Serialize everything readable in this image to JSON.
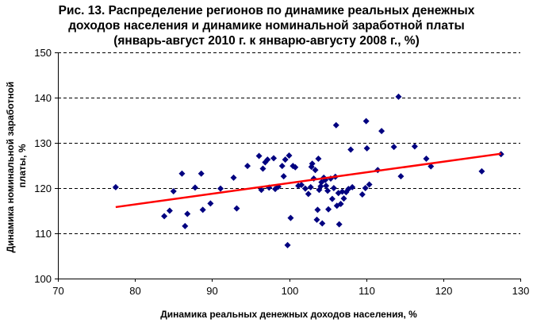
{
  "chart_data": {
    "type": "scatter",
    "title_lines": [
      "Рис. 13. Распределение регионов по динамике реальных денежных",
      "доходов населения и динамике номинальной заработной платы",
      "(январь-август 2010 г. к январю-августу 2008 г., %)"
    ],
    "xlabel": "Динамика реальных денежных доходов населения, %",
    "ylabel_lines": [
      "Динамика номинальной заработной",
      "платы, %"
    ],
    "xlim": [
      70,
      130
    ],
    "ylim": [
      100,
      150
    ],
    "xticks": [
      70,
      80,
      90,
      100,
      110,
      120,
      130
    ],
    "yticks": [
      100,
      110,
      120,
      130,
      140,
      150
    ],
    "grid": "horizontal dashed",
    "marker_color": "#000080",
    "trend_color": "#ff0000",
    "trendline": {
      "x": [
        77.5,
        127.5
      ],
      "y": [
        115.8,
        127.6
      ]
    },
    "points": [
      [
        77.5,
        120.2
      ],
      [
        83.8,
        113.8
      ],
      [
        84.5,
        115.0
      ],
      [
        85.0,
        119.3
      ],
      [
        86.1,
        123.2
      ],
      [
        86.5,
        111.6
      ],
      [
        86.8,
        114.3
      ],
      [
        87.8,
        120.1
      ],
      [
        88.6,
        123.2
      ],
      [
        88.8,
        115.2
      ],
      [
        89.8,
        116.6
      ],
      [
        91.1,
        119.9
      ],
      [
        92.8,
        122.3
      ],
      [
        93.2,
        115.5
      ],
      [
        94.6,
        124.9
      ],
      [
        96.1,
        127.1
      ],
      [
        96.4,
        119.6
      ],
      [
        96.6,
        124.3
      ],
      [
        96.9,
        125.7
      ],
      [
        97.2,
        126.3
      ],
      [
        97.4,
        120.1
      ],
      [
        98.0,
        126.6
      ],
      [
        98.2,
        119.8
      ],
      [
        98.6,
        120.3
      ],
      [
        99.1,
        124.9
      ],
      [
        99.3,
        122.6
      ],
      [
        99.5,
        126.3
      ],
      [
        99.8,
        107.4
      ],
      [
        100.0,
        127.2
      ],
      [
        100.2,
        113.4
      ],
      [
        100.5,
        124.9
      ],
      [
        100.8,
        124.6
      ],
      [
        101.2,
        120.5
      ],
      [
        101.6,
        120.7
      ],
      [
        102.1,
        119.9
      ],
      [
        102.5,
        118.7
      ],
      [
        102.8,
        120.2
      ],
      [
        102.9,
        124.7
      ],
      [
        103.0,
        125.4
      ],
      [
        103.2,
        122.1
      ],
      [
        103.4,
        124.0
      ],
      [
        103.6,
        113.0
      ],
      [
        103.7,
        115.2
      ],
      [
        103.8,
        126.5
      ],
      [
        103.9,
        119.6
      ],
      [
        104.1,
        120.4
      ],
      [
        104.2,
        121.3
      ],
      [
        104.3,
        112.2
      ],
      [
        104.5,
        122.3
      ],
      [
        104.7,
        121.8
      ],
      [
        104.8,
        120.5
      ],
      [
        105.0,
        119.4
      ],
      [
        105.1,
        115.3
      ],
      [
        105.4,
        122.1
      ],
      [
        105.6,
        117.6
      ],
      [
        105.8,
        120.0
      ],
      [
        106.0,
        122.5
      ],
      [
        106.1,
        133.9
      ],
      [
        106.2,
        116.1
      ],
      [
        106.4,
        118.9
      ],
      [
        106.5,
        112.0
      ],
      [
        106.7,
        116.5
      ],
      [
        106.9,
        119.2
      ],
      [
        107.1,
        117.7
      ],
      [
        107.4,
        119.1
      ],
      [
        107.7,
        119.8
      ],
      [
        108.0,
        128.5
      ],
      [
        108.2,
        120.2
      ],
      [
        109.5,
        118.6
      ],
      [
        109.9,
        120.0
      ],
      [
        110.0,
        134.8
      ],
      [
        110.1,
        128.8
      ],
      [
        110.4,
        120.8
      ],
      [
        111.5,
        124.0
      ],
      [
        112.0,
        132.6
      ],
      [
        113.6,
        129.1
      ],
      [
        114.2,
        140.2
      ],
      [
        114.5,
        122.6
      ],
      [
        116.3,
        129.2
      ],
      [
        117.8,
        126.5
      ],
      [
        118.4,
        124.8
      ],
      [
        125.0,
        123.7
      ],
      [
        127.5,
        127.5
      ]
    ]
  }
}
